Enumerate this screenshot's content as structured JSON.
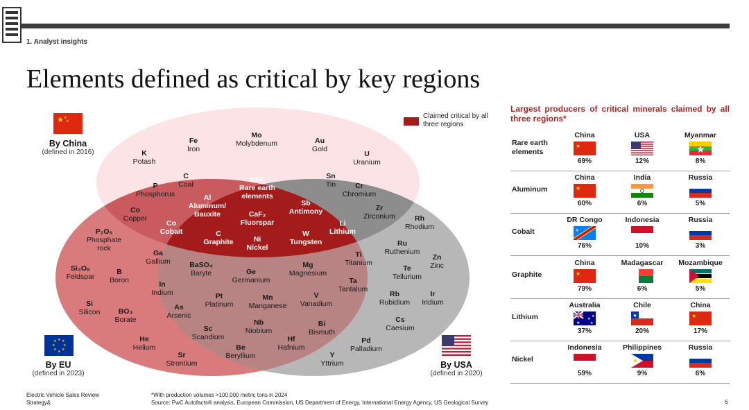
{
  "header": {
    "section": "1. Analyst insights",
    "title": "Elements defined as critical by key regions"
  },
  "legend": {
    "text": "Claimed critical by all three regions",
    "color": "#a31b1b"
  },
  "regions": {
    "china": {
      "name": "By China",
      "note": "(defined in 2016)",
      "flag": "china"
    },
    "eu": {
      "name": "By EU",
      "note": "(defined in 2023)",
      "flag": "eu"
    },
    "usa": {
      "name": "By USA",
      "note": "(defined in 2020)",
      "flag": "usa"
    }
  },
  "elements": {
    "china_only": [
      {
        "sym": "K",
        "name": "Potash"
      },
      {
        "sym": "Fe",
        "name": "Iron"
      },
      {
        "sym": "Mo",
        "name": "Molybdenum"
      },
      {
        "sym": "Au",
        "name": "Gold"
      },
      {
        "sym": "U",
        "name": "Uranium"
      }
    ],
    "china_eu": [
      {
        "sym": "C",
        "name": "Coal"
      },
      {
        "sym": "P",
        "name": "Phosphorus"
      },
      {
        "sym": "Co",
        "name": "Copper"
      }
    ],
    "china_usa": [
      {
        "sym": "Sn",
        "name": "Tin"
      },
      {
        "sym": "Cr",
        "name": "Chromium"
      },
      {
        "sym": "Zr",
        "name": "Zirconium"
      }
    ],
    "all_three": [
      {
        "sym": "REE",
        "name": "Rare earth elements"
      },
      {
        "sym": "Al",
        "name": "Aluminum/ Bauxite"
      },
      {
        "sym": "Sb",
        "name": "Antimony"
      },
      {
        "sym": "CaF₂",
        "name": "Fluorspar"
      },
      {
        "sym": "Co",
        "name": "Cobalt"
      },
      {
        "sym": "Li",
        "name": "Lithium"
      },
      {
        "sym": "C",
        "name": "Graphite"
      },
      {
        "sym": "Ni",
        "name": "Nickel"
      },
      {
        "sym": "W",
        "name": "Tungsten"
      }
    ],
    "eu_only": [
      {
        "sym": "P₂O₅",
        "name": "Phosphate rock"
      },
      {
        "sym": "Si₃O₈",
        "name": "Feldspar"
      },
      {
        "sym": "B",
        "name": "Boron"
      },
      {
        "sym": "Si",
        "name": "Silicon"
      },
      {
        "sym": "BO₃",
        "name": "Borate"
      },
      {
        "sym": "He",
        "name": "Helium"
      },
      {
        "sym": "Sr",
        "name": "Strontium"
      }
    ],
    "eu_usa": [
      {
        "sym": "Ga",
        "name": "Gallium"
      },
      {
        "sym": "BaSO₄",
        "name": "Baryte"
      },
      {
        "sym": "Ge",
        "name": "Germanium"
      },
      {
        "sym": "Mg",
        "name": "Magnesium"
      },
      {
        "sym": "Ti",
        "name": "Titanium"
      },
      {
        "sym": "In",
        "name": "Indium"
      },
      {
        "sym": "Pt",
        "name": "Platinum"
      },
      {
        "sym": "Mn",
        "name": "Manganese"
      },
      {
        "sym": "V",
        "name": "Vanadium"
      },
      {
        "sym": "Ta",
        "name": "Tantalum"
      },
      {
        "sym": "As",
        "name": "Arsenic"
      },
      {
        "sym": "Nb",
        "name": "Niobium"
      },
      {
        "sym": "Bi",
        "name": "Bismuth"
      },
      {
        "sym": "Sc",
        "name": "Scandium"
      },
      {
        "sym": "Hf",
        "name": "Hafnium"
      },
      {
        "sym": "Be",
        "name": "Beryllium"
      },
      {
        "sym": "Y",
        "name": "Yttrium"
      }
    ],
    "usa_only": [
      {
        "sym": "Rh",
        "name": "Rhodium"
      },
      {
        "sym": "Ru",
        "name": "Ruthenium"
      },
      {
        "sym": "Zn",
        "name": "Zinc"
      },
      {
        "sym": "Te",
        "name": "Tellurium"
      },
      {
        "sym": "Rb",
        "name": "Rubidium"
      },
      {
        "sym": "Ir",
        "name": "Iridium"
      },
      {
        "sym": "Cs",
        "name": "Caesium"
      },
      {
        "sym": "Pd",
        "name": "Palladium"
      }
    ]
  },
  "producers": {
    "title": "Largest producers of critical minerals claimed by all three regions*",
    "rows": [
      {
        "mineral": "Rare earth elements",
        "producers": [
          {
            "country": "China",
            "flag": "china",
            "share": "69%"
          },
          {
            "country": "USA",
            "flag": "usa",
            "share": "12%"
          },
          {
            "country": "Myanmar",
            "flag": "myanmar",
            "share": "8%"
          }
        ]
      },
      {
        "mineral": "Aluminum",
        "producers": [
          {
            "country": "China",
            "flag": "china",
            "share": "60%"
          },
          {
            "country": "India",
            "flag": "india",
            "share": "6%"
          },
          {
            "country": "Russia",
            "flag": "russia",
            "share": "5%"
          }
        ]
      },
      {
        "mineral": "Cobalt",
        "producers": [
          {
            "country": "DR Congo",
            "flag": "drcongo",
            "share": "76%"
          },
          {
            "country": "Indonesia",
            "flag": "indonesia",
            "share": "10%"
          },
          {
            "country": "Russia",
            "flag": "russia",
            "share": "3%"
          }
        ]
      },
      {
        "mineral": "Graphite",
        "producers": [
          {
            "country": "China",
            "flag": "china",
            "share": "79%"
          },
          {
            "country": "Madagascar",
            "flag": "madagascar",
            "share": "6%"
          },
          {
            "country": "Mozambique",
            "flag": "mozambique",
            "share": "5%"
          }
        ]
      },
      {
        "mineral": "Lithium",
        "producers": [
          {
            "country": "Australia",
            "flag": "australia",
            "share": "37%"
          },
          {
            "country": "Chile",
            "flag": "chile",
            "share": "20%"
          },
          {
            "country": "China",
            "flag": "china",
            "share": "17%"
          }
        ]
      },
      {
        "mineral": "Nickel",
        "producers": [
          {
            "country": "Indonesia",
            "flag": "indonesia",
            "share": "59%"
          },
          {
            "country": "Philippines",
            "flag": "philippines",
            "share": "9%"
          },
          {
            "country": "Russia",
            "flag": "russia",
            "share": "6%"
          }
        ]
      }
    ]
  },
  "footer": {
    "left": [
      "Electric Vehicle Sales Review",
      "Strategy&"
    ],
    "note": "*With production volumes >100,000 metric tons in 2024",
    "source": "Source: PwC Autofacts® analysis, European Commission, US Department of Energy, International Energy Agency, US Geological Survey",
    "page": "6"
  }
}
